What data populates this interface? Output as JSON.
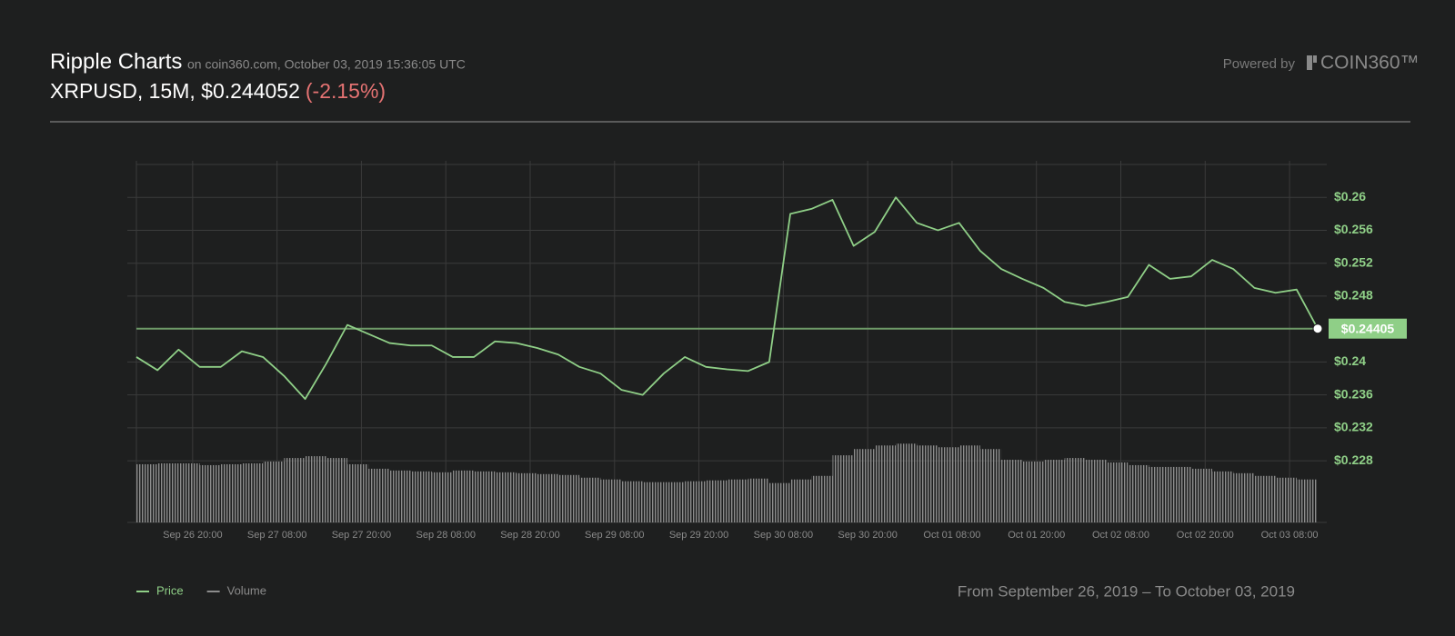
{
  "header": {
    "title": "Ripple Charts",
    "source": "on coin360.com, October 03, 2019 15:36:05 UTC",
    "pair": "XRPUSD, 15M, $0.244052",
    "change": "(-2.15%)",
    "powered_by": "Powered by",
    "brand": "COIN360™"
  },
  "chart_data": {
    "type": "line",
    "x": [
      "Sep 26 12:00",
      "Sep 26 15:00",
      "Sep 26 18:00",
      "Sep 26 21:00",
      "Sep 27 00:00",
      "Sep 27 03:00",
      "Sep 27 06:00",
      "Sep 27 09:00",
      "Sep 27 12:00",
      "Sep 27 15:00",
      "Sep 27 18:00",
      "Sep 27 21:00",
      "Sep 28 00:00",
      "Sep 28 03:00",
      "Sep 28 06:00",
      "Sep 28 09:00",
      "Sep 28 12:00",
      "Sep 28 15:00",
      "Sep 28 18:00",
      "Sep 28 21:00",
      "Sep 29 00:00",
      "Sep 29 03:00",
      "Sep 29 06:00",
      "Sep 29 09:00",
      "Sep 29 12:00",
      "Sep 29 15:00",
      "Sep 29 18:00",
      "Sep 29 21:00",
      "Sep 30 00:00",
      "Sep 30 03:00",
      "Sep 30 06:00",
      "Sep 30 09:00",
      "Sep 30 12:00",
      "Sep 30 15:00",
      "Sep 30 18:00",
      "Sep 30 21:00",
      "Oct 01 00:00",
      "Oct 01 03:00",
      "Oct 01 06:00",
      "Oct 01 09:00",
      "Oct 01 12:00",
      "Oct 01 15:00",
      "Oct 01 18:00",
      "Oct 01 21:00",
      "Oct 02 00:00",
      "Oct 02 03:00",
      "Oct 02 06:00",
      "Oct 02 09:00",
      "Oct 02 12:00",
      "Oct 02 15:00",
      "Oct 02 18:00",
      "Oct 02 21:00",
      "Oct 03 00:00",
      "Oct 03 03:00",
      "Oct 03 06:00",
      "Oct 03 09:00",
      "Oct 03 12:00"
    ],
    "series": [
      {
        "name": "Price",
        "color": "#8fcf87",
        "values": [
          0.2406,
          0.239,
          0.2415,
          0.2394,
          0.2394,
          0.2413,
          0.2406,
          0.2383,
          0.2355,
          0.2398,
          0.2445,
          0.2434,
          0.2423,
          0.242,
          0.242,
          0.2406,
          0.2406,
          0.2425,
          0.2423,
          0.2417,
          0.2409,
          0.2394,
          0.2386,
          0.2366,
          0.236,
          0.2386,
          0.2406,
          0.2394,
          0.2391,
          0.2389,
          0.24,
          0.258,
          0.2586,
          0.2597,
          0.2541,
          0.2558,
          0.26,
          0.2569,
          0.256,
          0.2569,
          0.2535,
          0.2513,
          0.2501,
          0.249,
          0.2473,
          0.2468,
          0.2473,
          0.2479,
          0.2518,
          0.2501,
          0.2504,
          0.2524,
          0.2513,
          0.249,
          0.2484,
          0.2488,
          0.24405
        ]
      },
      {
        "name": "Volume",
        "color": "#8c8c8c",
        "axis": "y2",
        "values": [
          65,
          66,
          66,
          64,
          65,
          66,
          68,
          72,
          74,
          72,
          65,
          60,
          58,
          57,
          56,
          58,
          57,
          56,
          55,
          54,
          53,
          50,
          48,
          46,
          45,
          45,
          46,
          47,
          48,
          49,
          44,
          48,
          52,
          75,
          82,
          86,
          88,
          86,
          84,
          86,
          82,
          70,
          68,
          70,
          72,
          70,
          67,
          64,
          62,
          62,
          60,
          57,
          55,
          52,
          50,
          48,
          44
        ]
      }
    ],
    "xlim": [
      "Sep 26 12:00",
      "Oct 03 12:00"
    ],
    "xticks": [
      "Sep 26 20:00",
      "Sep 27 08:00",
      "Sep 27 20:00",
      "Sep 28 08:00",
      "Sep 28 20:00",
      "Sep 29 08:00",
      "Sep 29 20:00",
      "Sep 30 08:00",
      "Sep 30 20:00",
      "Oct 01 08:00",
      "Oct 01 20:00",
      "Oct 02 08:00",
      "Oct 02 20:00",
      "Oct 03 08:00"
    ],
    "ylim": [
      0.2205,
      0.264
    ],
    "yticks": [
      {
        "value": 0.26,
        "label": "$0.26"
      },
      {
        "value": 0.256,
        "label": "$0.256"
      },
      {
        "value": 0.252,
        "label": "$0.252"
      },
      {
        "value": 0.248,
        "label": "$0.248"
      },
      {
        "value": 0.24,
        "label": "$0.24"
      },
      {
        "value": 0.236,
        "label": "$0.236"
      },
      {
        "value": 0.232,
        "label": "$0.232"
      },
      {
        "value": 0.228,
        "label": "$0.228"
      }
    ],
    "y2lim": [
      0,
      400
    ],
    "last_price": {
      "value": 0.24405,
      "label": "$0.24405"
    },
    "grid": true,
    "legend": "bottom-left"
  },
  "footer": {
    "range": "From September 26, 2019 – To October 03, 2019"
  }
}
